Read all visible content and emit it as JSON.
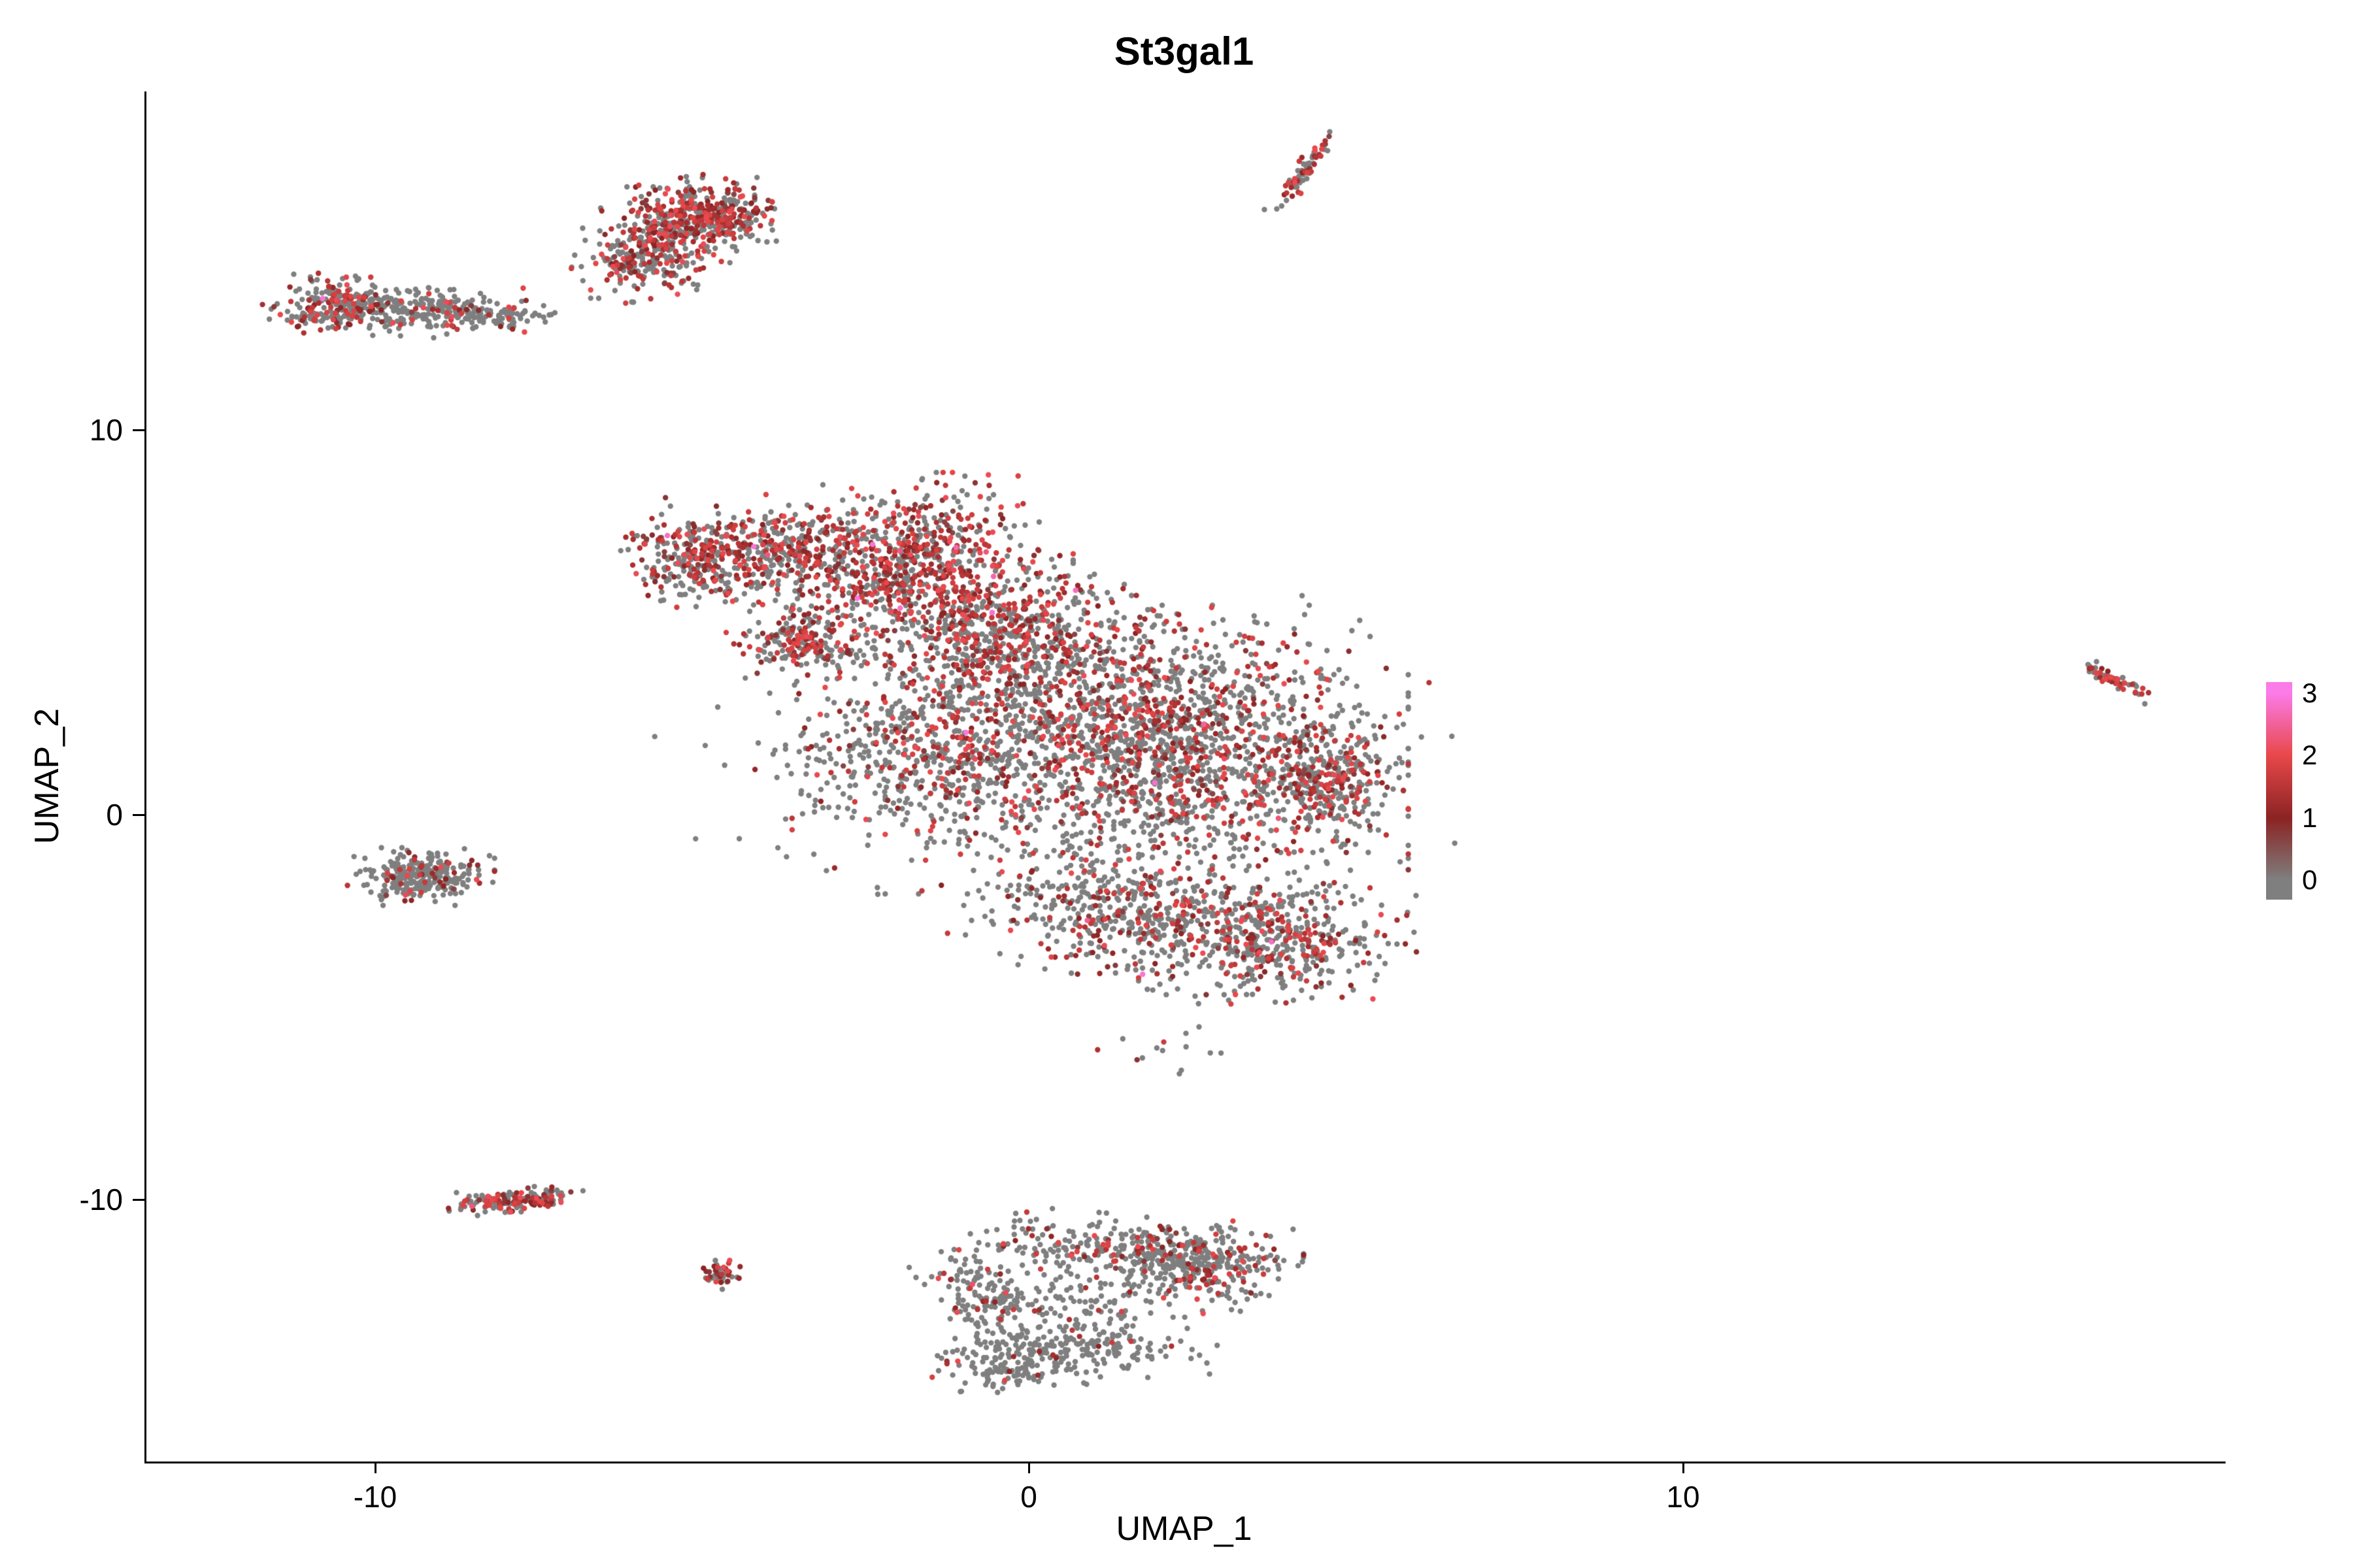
{
  "title": "St3gal1",
  "axes": {
    "x_label": "UMAP_1",
    "y_label": "UMAP_2",
    "x_ticks": [
      "-10",
      "0",
      "10"
    ],
    "y_ticks": [
      "10",
      "0",
      "-10"
    ]
  },
  "legend": {
    "ticks": [
      "3",
      "2",
      "1",
      "0"
    ]
  },
  "chart_data": {
    "type": "scatter",
    "title": "St3gal1",
    "subtitle": "",
    "xlabel": "UMAP_1",
    "ylabel": "UMAP_2",
    "xlim": [
      -13.5,
      18.3
    ],
    "ylim": [
      -16.8,
      18.8
    ],
    "xticks": [
      -10,
      0,
      10
    ],
    "yticks": [
      -10,
      0,
      10
    ],
    "grid": false,
    "legend_position": "right",
    "colorbar": {
      "ticks": [
        0,
        1,
        2,
        3
      ],
      "stop_values": [
        0,
        1,
        2,
        3
      ],
      "stop_colors": [
        "#7F7F7F",
        "#8B2323",
        "#E8484A",
        "#FB7BE8"
      ]
    },
    "base_color": "#7F7F7F",
    "point_radius": 4.2,
    "seed": 42,
    "pink_outlier_prob": 0.008,
    "clusters": [
      {
        "name": "topleft-strip-a",
        "cx": -10.6,
        "cy": 13.25,
        "sx": 0.45,
        "sy": 0.33,
        "rot": 0,
        "n": 230,
        "expr_frac": 0.35
      },
      {
        "name": "topleft-strip-b",
        "cx": -9.3,
        "cy": 13.1,
        "sx": 0.75,
        "sy": 0.28,
        "rot": 0,
        "n": 260,
        "expr_frac": 0.15
      },
      {
        "name": "topleft-strip-tail",
        "cx": -8.15,
        "cy": 12.95,
        "sx": 0.3,
        "sy": 0.16,
        "rot": 0,
        "n": 45,
        "expr_frac": 0.1
      },
      {
        "name": "topleft-outliers",
        "cx": -7.55,
        "cy": 13.05,
        "sx": 0.18,
        "sy": 0.1,
        "rot": 0,
        "n": 7,
        "expr_frac": 0.0
      },
      {
        "name": "top-cluster-main",
        "cx": -5.2,
        "cy": 15.4,
        "sx": 0.55,
        "sy": 0.48,
        "rot": 20,
        "n": 400,
        "expr_frac": 0.55
      },
      {
        "name": "top-cluster-lower",
        "cx": -5.95,
        "cy": 14.35,
        "sx": 0.42,
        "sy": 0.42,
        "rot": 0,
        "n": 200,
        "expr_frac": 0.35
      },
      {
        "name": "top-cluster-right",
        "cx": -4.55,
        "cy": 15.75,
        "sx": 0.3,
        "sy": 0.26,
        "rot": 0,
        "n": 90,
        "expr_frac": 0.5
      },
      {
        "name": "topright-streak",
        "cx": 4.2,
        "cy": 16.7,
        "sx": 0.45,
        "sy": 0.07,
        "rot": 67,
        "n": 70,
        "expr_frac": 0.55
      },
      {
        "name": "main-tip-left",
        "cx": -5.0,
        "cy": 6.65,
        "sx": 0.55,
        "sy": 0.5,
        "rot": -35,
        "n": 320,
        "expr_frac": 0.5
      },
      {
        "name": "main-bridge",
        "cx": -3.6,
        "cy": 6.95,
        "sx": 0.5,
        "sy": 0.55,
        "rot": 0,
        "n": 260,
        "expr_frac": 0.45
      },
      {
        "name": "main-arm",
        "cx": -3.5,
        "cy": 4.5,
        "sx": 0.42,
        "sy": 0.42,
        "rot": -40,
        "n": 180,
        "expr_frac": 0.4
      },
      {
        "name": "main-upper-red",
        "cx": -1.7,
        "cy": 6.4,
        "sx": 0.95,
        "sy": 1.0,
        "rot": 0,
        "n": 800,
        "expr_frac": 0.58
      },
      {
        "name": "main-upper-mid",
        "cx": -0.2,
        "cy": 4.6,
        "sx": 1.0,
        "sy": 0.85,
        "rot": 0,
        "n": 600,
        "expr_frac": 0.45
      },
      {
        "name": "main-body",
        "cx": 1.8,
        "cy": 1.7,
        "sx": 1.6,
        "sy": 1.5,
        "rot": 0,
        "n": 1800,
        "expr_frac": 0.32
      },
      {
        "name": "main-body-left",
        "cx": -1.6,
        "cy": 1.7,
        "sx": 0.85,
        "sy": 1.15,
        "rot": 0,
        "n": 450,
        "expr_frac": 0.32
      },
      {
        "name": "main-right-bulge",
        "cx": 4.6,
        "cy": 0.9,
        "sx": 0.45,
        "sy": 0.75,
        "rot": 0,
        "n": 320,
        "expr_frac": 0.3
      },
      {
        "name": "main-lower-left",
        "cx": 1.4,
        "cy": -2.5,
        "sx": 1.0,
        "sy": 0.7,
        "rot": -15,
        "n": 450,
        "expr_frac": 0.3
      },
      {
        "name": "main-lower-right",
        "cx": 3.8,
        "cy": -3.2,
        "sx": 0.85,
        "sy": 0.75,
        "rot": 0,
        "n": 500,
        "expr_frac": 0.33
      },
      {
        "name": "main-halo",
        "cx": 0.3,
        "cy": 2.2,
        "sx": 2.5,
        "sy": 2.1,
        "rot": 0,
        "n": 200,
        "expr_frac": 0.2
      },
      {
        "name": "main-left-sparse",
        "cx": -3.3,
        "cy": 0.6,
        "sx": 0.5,
        "sy": 0.9,
        "rot": 0,
        "n": 30,
        "expr_frac": 0.25
      },
      {
        "name": "below-main-sparse",
        "cx": 2.2,
        "cy": -6.2,
        "sx": 0.5,
        "sy": 0.35,
        "rot": 0,
        "n": 14,
        "expr_frac": 0.15
      },
      {
        "name": "left-small",
        "cx": -9.3,
        "cy": -1.6,
        "sx": 0.45,
        "sy": 0.3,
        "rot": 0,
        "n": 270,
        "expr_frac": 0.12
      },
      {
        "name": "bottomleft-strip",
        "cx": -7.85,
        "cy": -10.0,
        "sx": 0.42,
        "sy": 0.13,
        "rot": 8,
        "n": 175,
        "expr_frac": 0.45
      },
      {
        "name": "tiny-cluster",
        "cx": -4.75,
        "cy": -11.95,
        "sx": 0.17,
        "sy": 0.15,
        "rot": 0,
        "n": 45,
        "expr_frac": 0.5
      },
      {
        "name": "bottom-top-edge",
        "cx": 1.7,
        "cy": -11.3,
        "sx": 1.0,
        "sy": 0.35,
        "rot": -8,
        "n": 290,
        "expr_frac": 0.22
      },
      {
        "name": "bottom-right-lobe",
        "cx": 2.7,
        "cy": -11.8,
        "sx": 0.55,
        "sy": 0.5,
        "rot": 0,
        "n": 220,
        "expr_frac": 0.18
      },
      {
        "name": "bottom-left-edge",
        "cx": -0.65,
        "cy": -12.5,
        "sx": 0.38,
        "sy": 0.65,
        "rot": 15,
        "n": 160,
        "expr_frac": 0.12
      },
      {
        "name": "bottom-bottom-edge",
        "cx": 0.4,
        "cy": -13.9,
        "sx": 0.9,
        "sy": 0.38,
        "rot": 8,
        "n": 260,
        "expr_frac": 0.08
      },
      {
        "name": "bottom-mid",
        "cx": 0.9,
        "cy": -12.5,
        "sx": 0.8,
        "sy": 0.55,
        "rot": 0,
        "n": 110,
        "expr_frac": 0.1
      },
      {
        "name": "bottom-tail",
        "cx": -0.3,
        "cy": -14.6,
        "sx": 0.3,
        "sy": 0.2,
        "rot": 0,
        "n": 50,
        "expr_frac": 0.05
      },
      {
        "name": "far-right",
        "cx": 16.6,
        "cy": 3.5,
        "sx": 0.3,
        "sy": 0.08,
        "rot": -40,
        "n": 55,
        "expr_frac": 0.6
      }
    ]
  }
}
